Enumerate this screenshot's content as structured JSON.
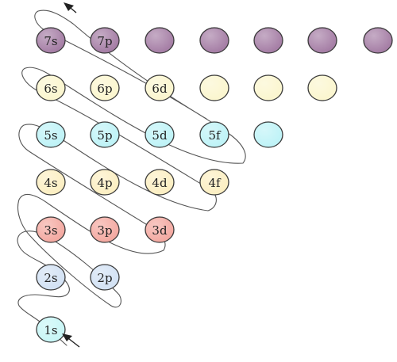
{
  "colors": {
    "7": "#a67fa6",
    "6": "#fbf6cf",
    "5": "#bff3f7",
    "4": "#fcefc3",
    "3": "#f4aaa2",
    "2": "#d3e2f4",
    "1": "#c8f6f6"
  },
  "icons": {
    "start_arrow": "arrow-up-left-icon",
    "end_arrow": "arrow-up-left-icon"
  },
  "rows": [
    {
      "n": 7,
      "labels": [
        "7s",
        "7p",
        "",
        "",
        "",
        "",
        ""
      ]
    },
    {
      "n": 6,
      "labels": [
        "6s",
        "6p",
        "6d",
        "",
        "",
        ""
      ]
    },
    {
      "n": 5,
      "labels": [
        "5s",
        "5p",
        "5d",
        "5f",
        ""
      ]
    },
    {
      "n": 4,
      "labels": [
        "4s",
        "4p",
        "4d",
        "4f"
      ]
    },
    {
      "n": 3,
      "labels": [
        "3s",
        "3p",
        "3d"
      ]
    },
    {
      "n": 2,
      "labels": [
        "2s",
        "2p"
      ]
    },
    {
      "n": 1,
      "labels": [
        "1s"
      ]
    }
  ]
}
